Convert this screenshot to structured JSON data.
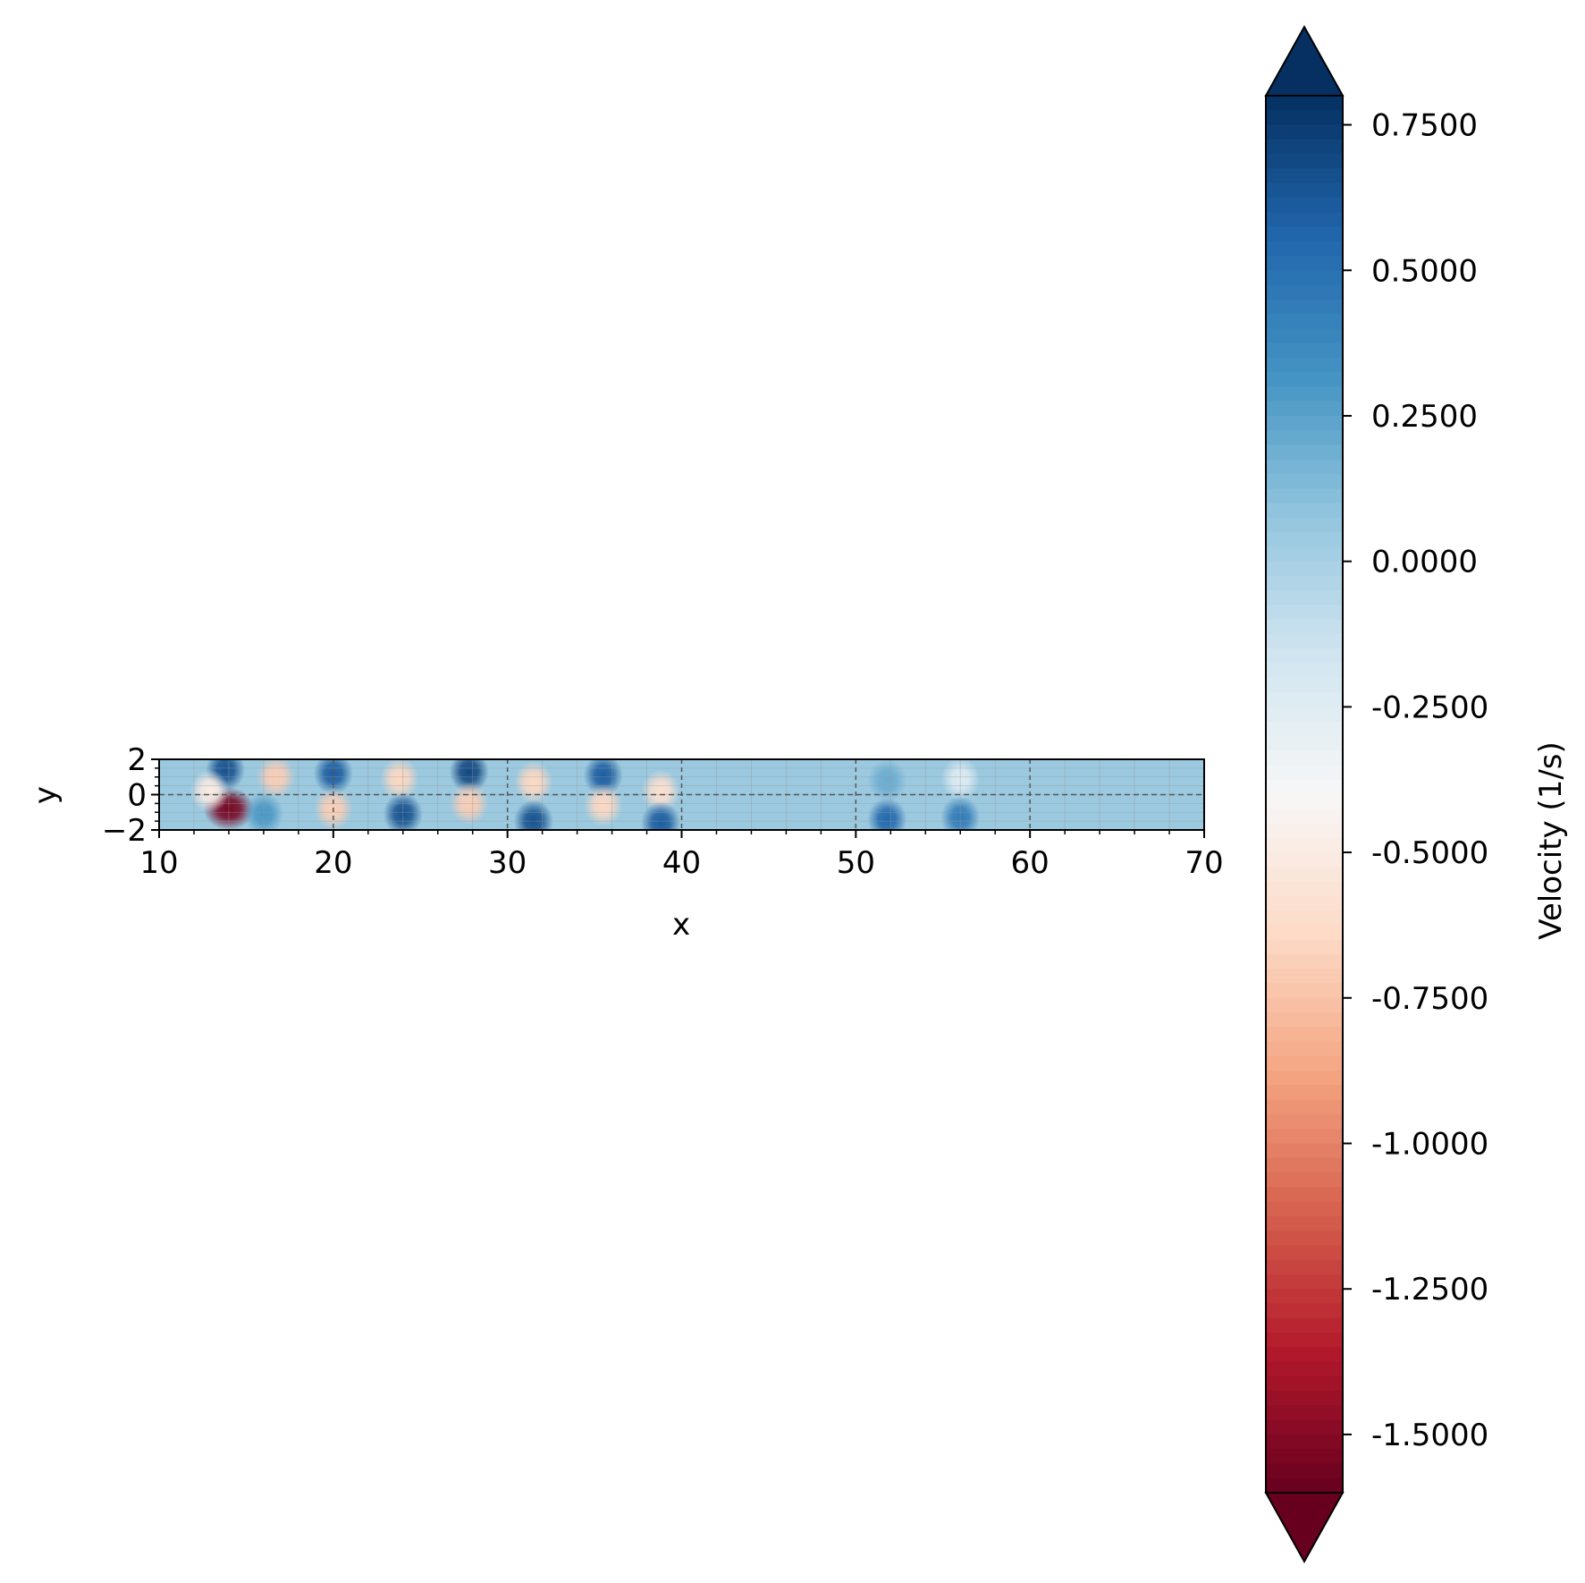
{
  "chart_data": {
    "type": "heatmap",
    "title": "",
    "xlabel": "x",
    "ylabel": "y",
    "xlim": [
      10,
      70
    ],
    "ylim": [
      -2,
      2
    ],
    "x_ticks": [
      "10",
      "20",
      "30",
      "40",
      "50",
      "60",
      "70"
    ],
    "y_ticks": [
      "2",
      "0",
      "−2"
    ],
    "grid": true,
    "centerline_y": 0,
    "colormap": "RdBu",
    "colorbar": {
      "label": "Velocity (1/s)",
      "range": [
        -1.6,
        0.8
      ],
      "extend": "both",
      "ticks": [
        "0.7500",
        "0.5000",
        "0.2500",
        "0.0000",
        "-0.2500",
        "-0.5000",
        "-0.7500",
        "-1.0000",
        "-1.2500",
        "-1.5000"
      ],
      "tick_values": [
        0.75,
        0.5,
        0.25,
        0.0,
        -0.25,
        -0.5,
        -0.75,
        -1.0,
        -1.25,
        -1.5
      ]
    },
    "background_value": 0.05,
    "features": [
      {
        "x": 13.8,
        "y": 1.4,
        "value": 0.65
      },
      {
        "x": 14.0,
        "y": -0.8,
        "value": -1.55
      },
      {
        "x": 12.9,
        "y": 0.2,
        "value": -0.5
      },
      {
        "x": 16.7,
        "y": 1.0,
        "value": -0.7
      },
      {
        "x": 16.0,
        "y": -1.1,
        "value": 0.3
      },
      {
        "x": 20.0,
        "y": 1.2,
        "value": 0.6
      },
      {
        "x": 20.0,
        "y": -0.8,
        "value": -0.7
      },
      {
        "x": 23.8,
        "y": 0.9,
        "value": -0.65
      },
      {
        "x": 24.0,
        "y": -1.1,
        "value": 0.65
      },
      {
        "x": 27.8,
        "y": 1.3,
        "value": 0.7
      },
      {
        "x": 27.8,
        "y": -0.5,
        "value": -0.7
      },
      {
        "x": 31.5,
        "y": 0.7,
        "value": -0.65
      },
      {
        "x": 31.5,
        "y": -1.5,
        "value": 0.65
      },
      {
        "x": 35.5,
        "y": 1.1,
        "value": 0.6
      },
      {
        "x": 35.5,
        "y": -0.6,
        "value": -0.65
      },
      {
        "x": 38.8,
        "y": 0.2,
        "value": -0.6
      },
      {
        "x": 38.8,
        "y": -1.6,
        "value": 0.6
      },
      {
        "x": 51.8,
        "y": -1.4,
        "value": 0.55
      },
      {
        "x": 51.8,
        "y": 0.8,
        "value": 0.2
      },
      {
        "x": 56.0,
        "y": -1.3,
        "value": 0.45
      },
      {
        "x": 56.0,
        "y": 0.9,
        "value": -0.25
      }
    ]
  }
}
